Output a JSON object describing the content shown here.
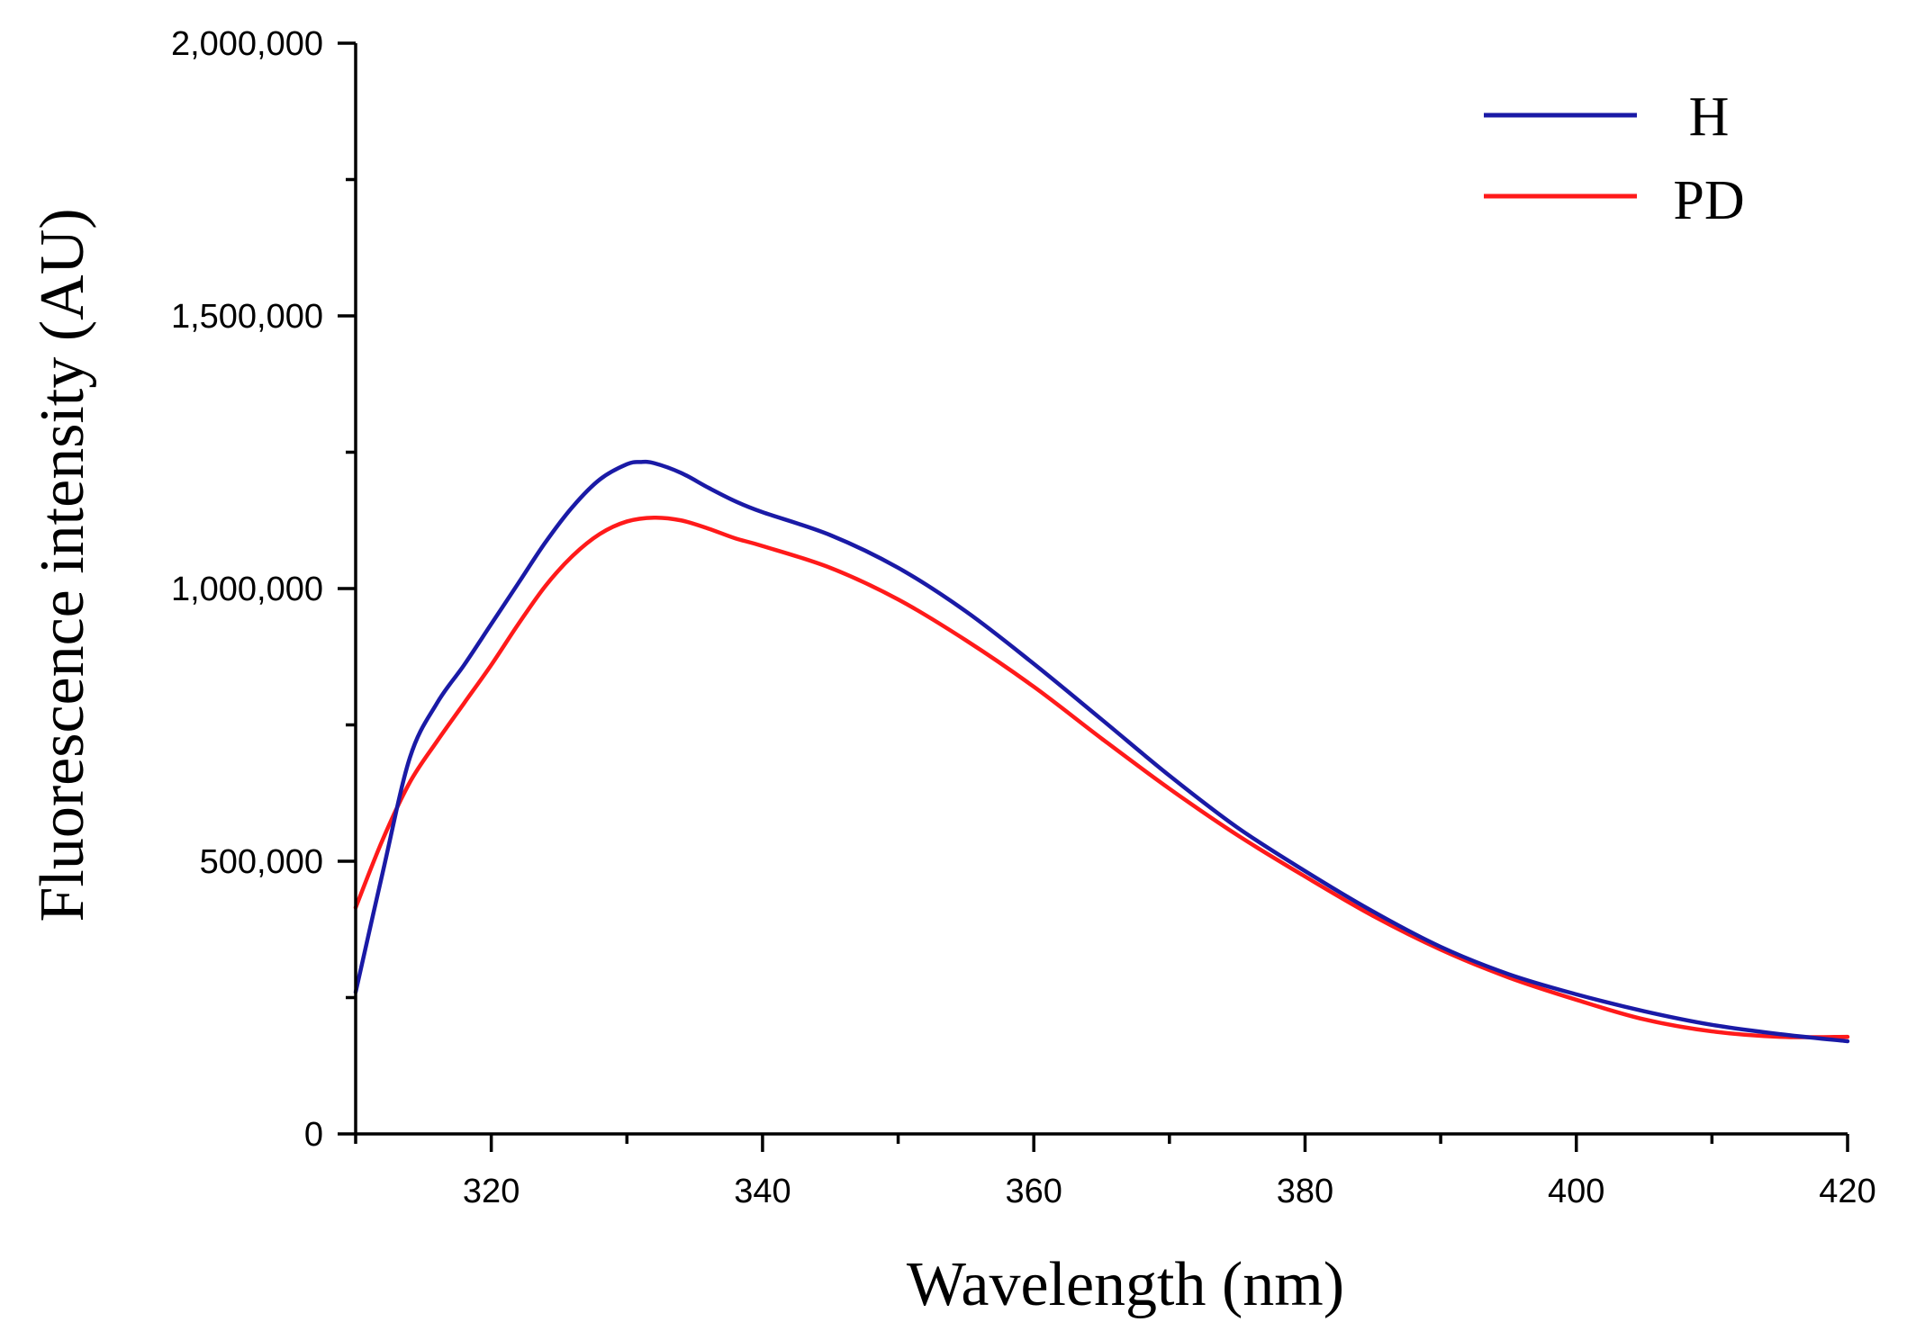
{
  "chart_data": {
    "type": "line",
    "title": "",
    "xlabel": "Wavelength (nm)",
    "ylabel": "Fluorescence intensity (AU)",
    "xlim": [
      310,
      420
    ],
    "ylim": [
      0,
      2000000
    ],
    "x_ticks": [
      320,
      340,
      360,
      380,
      400,
      420
    ],
    "x_tick_labels": [
      "320",
      "340",
      "360",
      "380",
      "400",
      "420"
    ],
    "x_minor_ticks": [
      310,
      330,
      350,
      370,
      390,
      410
    ],
    "y_ticks": [
      0,
      500000,
      1000000,
      1500000,
      2000000
    ],
    "y_tick_labels": [
      "0",
      "500,000",
      "1,000,000",
      "1,500,000",
      "2,000,000"
    ],
    "y_minor_ticks": [
      250000,
      750000,
      1250000,
      1750000
    ],
    "grid": false,
    "legend_position": "top-right",
    "series": [
      {
        "name": "H",
        "color": "#1a1aa6",
        "x": [
          310,
          312,
          314,
          316,
          318,
          320,
          322,
          324,
          326,
          328,
          330,
          331,
          332,
          334,
          336,
          338,
          340,
          345,
          350,
          355,
          360,
          365,
          370,
          375,
          380,
          385,
          390,
          395,
          400,
          405,
          410,
          415,
          420
        ],
        "y": [
          260000,
          480000,
          690000,
          790000,
          860000,
          935000,
          1010000,
          1085000,
          1150000,
          1200000,
          1228000,
          1232000,
          1230000,
          1212000,
          1185000,
          1160000,
          1140000,
          1098000,
          1038000,
          958000,
          862000,
          760000,
          657000,
          562000,
          482000,
          408000,
          343000,
          293000,
          256000,
          225000,
          200000,
          183000,
          170000
        ]
      },
      {
        "name": "PD",
        "color": "#ff1a1a",
        "x": [
          310,
          312,
          314,
          316,
          318,
          320,
          322,
          324,
          326,
          328,
          330,
          332,
          334,
          336,
          338,
          340,
          345,
          350,
          355,
          360,
          365,
          370,
          375,
          380,
          385,
          390,
          395,
          400,
          405,
          410,
          415,
          420
        ],
        "y": [
          415000,
          540000,
          645000,
          720000,
          790000,
          860000,
          935000,
          1005000,
          1060000,
          1100000,
          1123000,
          1130000,
          1125000,
          1110000,
          1092000,
          1078000,
          1038000,
          980000,
          905000,
          820000,
          725000,
          633000,
          548000,
          472000,
          400000,
          338000,
          287000,
          246000,
          210000,
          188000,
          178000,
          178000
        ]
      }
    ]
  }
}
